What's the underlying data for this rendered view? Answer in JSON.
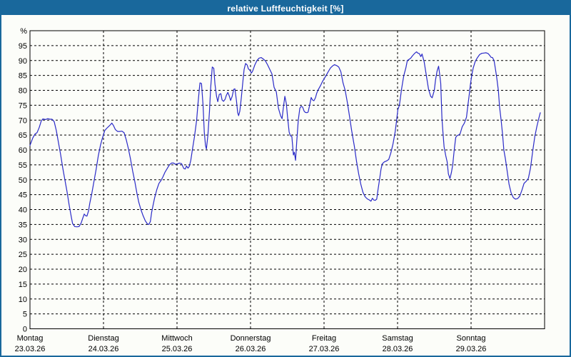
{
  "window": {
    "title": "relative Luftfeuchtigkeit [%]"
  },
  "colors": {
    "titlebar_bg": "#19689c",
    "window_border": "#19689c",
    "window_bg": "#fcfdf9",
    "line": "#2a2ac8",
    "grid": "#000000",
    "frame": "#000000",
    "text": "#000000",
    "title_text": "#ffffff"
  },
  "chart_data": {
    "type": "line",
    "title": "relative Luftfeuchtigkeit [%]",
    "ylabel": "%",
    "ylim": [
      0,
      100
    ],
    "xlim_hours": [
      0,
      168
    ],
    "grid": "dashed",
    "legend_position": "none",
    "y_ticks": [
      0,
      5,
      10,
      15,
      20,
      25,
      30,
      35,
      40,
      45,
      50,
      55,
      60,
      65,
      70,
      75,
      80,
      85,
      90,
      95
    ],
    "days": [
      {
        "name": "Montag",
        "date": "23.03.26"
      },
      {
        "name": "Dienstag",
        "date": "24.03.26"
      },
      {
        "name": "Mittwoch",
        "date": "25.03.26"
      },
      {
        "name": "Donnerstag",
        "date": "26.03.26"
      },
      {
        "name": "Freitag",
        "date": "27.03.26"
      },
      {
        "name": "Samstag",
        "date": "28.03.26"
      },
      {
        "name": "Sonntag",
        "date": "29.03.26"
      }
    ],
    "series": [
      {
        "name": "relative Luftfeuchtigkeit",
        "unit": "%",
        "x_unit": "hours since Montag 23.03.26 00:00",
        "points": [
          [
            0,
            61.5
          ],
          [
            0.9,
            64
          ],
          [
            1.6,
            65.3
          ],
          [
            2.3,
            65.8
          ],
          [
            3,
            67.5
          ],
          [
            3.7,
            69.8
          ],
          [
            4.2,
            70.4
          ],
          [
            5.1,
            70.2
          ],
          [
            5.8,
            70.5
          ],
          [
            6.5,
            70.3
          ],
          [
            7.2,
            70.3
          ],
          [
            7.9,
            69.5
          ],
          [
            8.6,
            66.5
          ],
          [
            9.3,
            62.5
          ],
          [
            10,
            58.5
          ],
          [
            10.7,
            54
          ],
          [
            11.4,
            50
          ],
          [
            12.1,
            46
          ],
          [
            12.8,
            41.5
          ],
          [
            13.5,
            37.5
          ],
          [
            13.9,
            35.3
          ],
          [
            14.6,
            34.3
          ],
          [
            15.3,
            34.2
          ],
          [
            16,
            34.3
          ],
          [
            16.7,
            35.5
          ],
          [
            17.2,
            37
          ],
          [
            17.7,
            38.5
          ],
          [
            18.1,
            38
          ],
          [
            18.6,
            37.8
          ],
          [
            19.1,
            39.5
          ],
          [
            19.5,
            42
          ],
          [
            20.2,
            45.5
          ],
          [
            20.9,
            49.5
          ],
          [
            21.6,
            53.5
          ],
          [
            22.3,
            58
          ],
          [
            23,
            61.5
          ],
          [
            23.5,
            63.5
          ],
          [
            24.4,
            66.5
          ],
          [
            25.1,
            67.3
          ],
          [
            25.6,
            67.8
          ],
          [
            26.3,
            68.5
          ],
          [
            26.7,
            69
          ],
          [
            27.2,
            68.3
          ],
          [
            27.9,
            66.8
          ],
          [
            28.6,
            66.2
          ],
          [
            29.3,
            66.2
          ],
          [
            30,
            66.3
          ],
          [
            30.7,
            65.8
          ],
          [
            31.4,
            63.5
          ],
          [
            32.1,
            60.5
          ],
          [
            32.8,
            57
          ],
          [
            33.5,
            53
          ],
          [
            34.2,
            49.5
          ],
          [
            34.9,
            45.5
          ],
          [
            35.5,
            42.5
          ],
          [
            36.2,
            40
          ],
          [
            36.9,
            38
          ],
          [
            37.6,
            36.3
          ],
          [
            38.3,
            35.2
          ],
          [
            38.8,
            35
          ],
          [
            39.3,
            36
          ],
          [
            39.7,
            39
          ],
          [
            40.2,
            41.5
          ],
          [
            40.7,
            44
          ],
          [
            41.4,
            46.7
          ],
          [
            42.1,
            48.8
          ],
          [
            42.8,
            49.8
          ],
          [
            43.4,
            51
          ],
          [
            44.1,
            52.6
          ],
          [
            44.8,
            53.8
          ],
          [
            45.5,
            55
          ],
          [
            46.2,
            55.6
          ],
          [
            46.9,
            55.6
          ],
          [
            47.4,
            55.2
          ],
          [
            48.1,
            55.3
          ],
          [
            48.8,
            55.6
          ],
          [
            49.5,
            55.4
          ],
          [
            50.2,
            53.8
          ],
          [
            50.7,
            53.6
          ],
          [
            51.1,
            54.6
          ],
          [
            51.6,
            53.9
          ],
          [
            52,
            54.5
          ],
          [
            52.5,
            56.5
          ],
          [
            53,
            60
          ],
          [
            53.7,
            64.5
          ],
          [
            54.4,
            70
          ],
          [
            54.8,
            75
          ],
          [
            55.3,
            80.5
          ],
          [
            55.5,
            82.5
          ],
          [
            56,
            82.3
          ],
          [
            56.5,
            75
          ],
          [
            56.9,
            66
          ],
          [
            57.3,
            61.5
          ],
          [
            57.6,
            60.3
          ],
          [
            58.1,
            65
          ],
          [
            58.6,
            73
          ],
          [
            59,
            81
          ],
          [
            59.5,
            87.8
          ],
          [
            60,
            87.4
          ],
          [
            60.4,
            82
          ],
          [
            60.9,
            78
          ],
          [
            61.3,
            76.2
          ],
          [
            61.8,
            78.6
          ],
          [
            62.3,
            78.9
          ],
          [
            62.7,
            76.8
          ],
          [
            63.2,
            76.3
          ],
          [
            63.7,
            77
          ],
          [
            64.1,
            78.3
          ],
          [
            64.6,
            79.3
          ],
          [
            65.1,
            78
          ],
          [
            65.5,
            76.6
          ],
          [
            66,
            78
          ],
          [
            66.5,
            80.3
          ],
          [
            66.9,
            80.5
          ],
          [
            67.4,
            76.5
          ],
          [
            67.8,
            72.5
          ],
          [
            68.1,
            71.5
          ],
          [
            68.5,
            73
          ],
          [
            69,
            77.5
          ],
          [
            69.5,
            83
          ],
          [
            69.9,
            87
          ],
          [
            70.4,
            89
          ],
          [
            70.9,
            88.5
          ],
          [
            71.3,
            87.2
          ],
          [
            71.8,
            86.7
          ],
          [
            72.3,
            85.8
          ],
          [
            72.7,
            86.5
          ],
          [
            73.4,
            88.5
          ],
          [
            74.1,
            90
          ],
          [
            74.8,
            90.8
          ],
          [
            75.5,
            91
          ],
          [
            76.2,
            90.5
          ],
          [
            76.9,
            89.8
          ],
          [
            77.6,
            88.5
          ],
          [
            78.3,
            87
          ],
          [
            79,
            85.5
          ],
          [
            79.7,
            81
          ],
          [
            80.4,
            79.5
          ],
          [
            81.1,
            74
          ],
          [
            81.8,
            71.5
          ],
          [
            82.3,
            70.5
          ],
          [
            82.7,
            74
          ],
          [
            83.2,
            78
          ],
          [
            83.7,
            75.5
          ],
          [
            84.1,
            71
          ],
          [
            84.6,
            66
          ],
          [
            85,
            64.8
          ],
          [
            85.5,
            64.5
          ],
          [
            86,
            58.3
          ],
          [
            86.3,
            59.2
          ],
          [
            86.7,
            56.5
          ],
          [
            87.1,
            63
          ],
          [
            87.6,
            70
          ],
          [
            88.1,
            74
          ],
          [
            88.5,
            74.6
          ],
          [
            89,
            74.4
          ],
          [
            89.5,
            73
          ],
          [
            89.9,
            72.6
          ],
          [
            90.4,
            72.5
          ],
          [
            90.8,
            72.7
          ],
          [
            91.3,
            75
          ],
          [
            91.8,
            77.6
          ],
          [
            92.2,
            76.8
          ],
          [
            92.7,
            76.5
          ],
          [
            93.2,
            77.5
          ],
          [
            93.6,
            79
          ],
          [
            94.1,
            80.2
          ],
          [
            94.8,
            81.5
          ],
          [
            95.5,
            83
          ],
          [
            96,
            83.8
          ],
          [
            96.7,
            85
          ],
          [
            97.4,
            86.3
          ],
          [
            98.1,
            87.5
          ],
          [
            98.8,
            88.2
          ],
          [
            99.4,
            88.6
          ],
          [
            100.1,
            88.3
          ],
          [
            100.8,
            87.8
          ],
          [
            101.5,
            86.2
          ],
          [
            102.2,
            82.5
          ],
          [
            102.9,
            80
          ],
          [
            103.6,
            76
          ],
          [
            104.3,
            71.4
          ],
          [
            105,
            66.6
          ],
          [
            105.9,
            61.2
          ],
          [
            106.6,
            56.2
          ],
          [
            107.3,
            52
          ],
          [
            108,
            48.5
          ],
          [
            108.7,
            45.8
          ],
          [
            109.4,
            44.3
          ],
          [
            110.1,
            43.6
          ],
          [
            110.8,
            43.2
          ],
          [
            111.3,
            42.8
          ],
          [
            111.8,
            43.8
          ],
          [
            112.2,
            43.2
          ],
          [
            112.7,
            43.1
          ],
          [
            113.2,
            43.5
          ],
          [
            113.6,
            46.5
          ],
          [
            114.1,
            50
          ],
          [
            114.6,
            53.5
          ],
          [
            115,
            55.3
          ],
          [
            115.7,
            56
          ],
          [
            116.4,
            56.3
          ],
          [
            117.1,
            56.8
          ],
          [
            117.8,
            59
          ],
          [
            118.5,
            62
          ],
          [
            119.2,
            66
          ],
          [
            119.7,
            70
          ],
          [
            120.1,
            73.5
          ],
          [
            120.6,
            75
          ],
          [
            121.3,
            80.4
          ],
          [
            122,
            84.8
          ],
          [
            122.7,
            87.5
          ],
          [
            123.2,
            90
          ],
          [
            123.9,
            90.5
          ],
          [
            124.3,
            90.8
          ],
          [
            124.8,
            91.5
          ],
          [
            125.5,
            92.3
          ],
          [
            126.2,
            92.9
          ],
          [
            126.6,
            92.5
          ],
          [
            127.1,
            92.3
          ],
          [
            127.6,
            91.3
          ],
          [
            128,
            92.2
          ],
          [
            128.7,
            89.5
          ],
          [
            129.4,
            85
          ],
          [
            130.1,
            80.5
          ],
          [
            130.8,
            78
          ],
          [
            131.3,
            77.5
          ],
          [
            132,
            80
          ],
          [
            132.4,
            83.5
          ],
          [
            132.9,
            86.5
          ],
          [
            133.4,
            88.1
          ],
          [
            133.8,
            85
          ],
          [
            134.1,
            82.3
          ],
          [
            134.5,
            70.5
          ],
          [
            134.8,
            66.2
          ],
          [
            135.2,
            61
          ],
          [
            135.7,
            58.2
          ],
          [
            136.2,
            56
          ],
          [
            136.6,
            52
          ],
          [
            137.1,
            50.4
          ],
          [
            137.6,
            52.5
          ],
          [
            138,
            55
          ],
          [
            138.5,
            60
          ],
          [
            139,
            64.2
          ],
          [
            139.4,
            64.8
          ],
          [
            139.9,
            65
          ],
          [
            140.4,
            65.4
          ],
          [
            141.1,
            67.8
          ],
          [
            141.8,
            69
          ],
          [
            142.5,
            71
          ],
          [
            142.9,
            74.5
          ],
          [
            143.4,
            78.5
          ],
          [
            143.8,
            82
          ],
          [
            144.3,
            85.5
          ],
          [
            144.7,
            87.5
          ],
          [
            145.4,
            89.8
          ],
          [
            146.1,
            91
          ],
          [
            146.8,
            92
          ],
          [
            147.5,
            92.4
          ],
          [
            148.2,
            92.5
          ],
          [
            148.9,
            92.6
          ],
          [
            149.6,
            92.3
          ],
          [
            150.1,
            91.7
          ],
          [
            150.5,
            91.1
          ],
          [
            151,
            91
          ],
          [
            151.5,
            90
          ],
          [
            151.9,
            87.5
          ],
          [
            152.4,
            84
          ],
          [
            152.9,
            80
          ],
          [
            153.3,
            74.5
          ],
          [
            153.8,
            70
          ],
          [
            154.3,
            65
          ],
          [
            154.7,
            60
          ],
          [
            155.2,
            57
          ],
          [
            155.7,
            53.5
          ],
          [
            156.4,
            48.5
          ],
          [
            157.1,
            45.5
          ],
          [
            157.8,
            44
          ],
          [
            158.5,
            43.5
          ],
          [
            159.2,
            43.7
          ],
          [
            159.9,
            44.5
          ],
          [
            160.6,
            46.5
          ],
          [
            161.3,
            48.8
          ],
          [
            162,
            49.5
          ],
          [
            162.7,
            50.5
          ],
          [
            163.4,
            54
          ],
          [
            164.1,
            59.5
          ],
          [
            164.8,
            64.5
          ],
          [
            165.5,
            68
          ],
          [
            166.2,
            71
          ],
          [
            166.6,
            72.5
          ]
        ]
      }
    ]
  }
}
